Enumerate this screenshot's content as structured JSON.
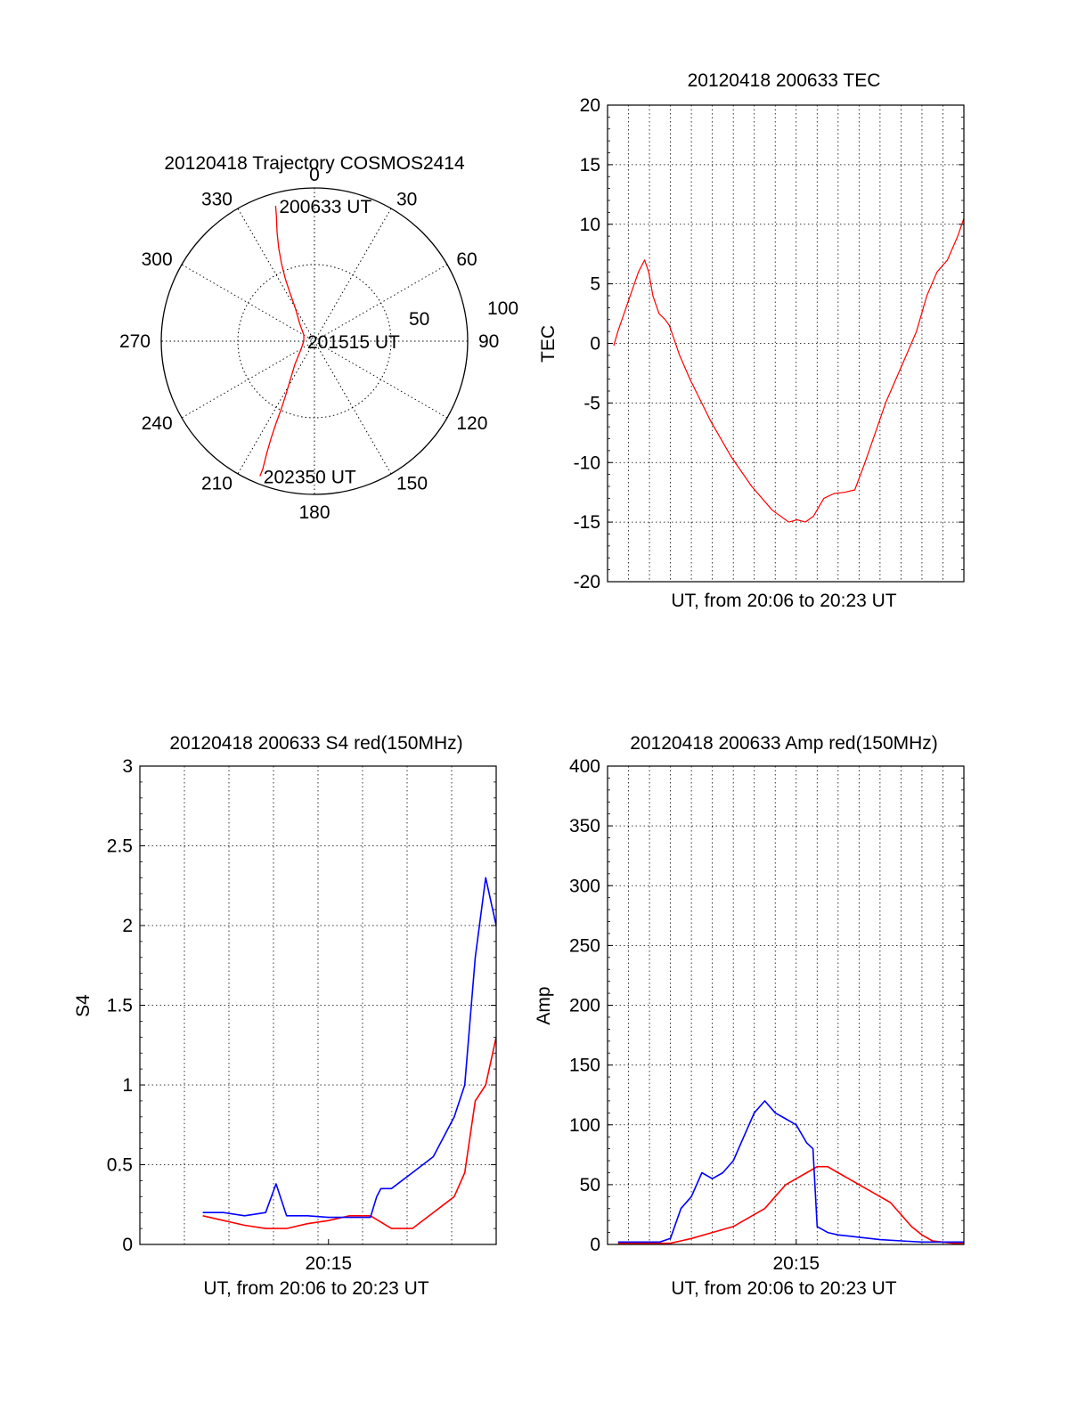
{
  "colors": {
    "red": "#ff0000",
    "blue": "#0000ff",
    "axis": "#000000",
    "grid": "#000000",
    "background": "#ffffff"
  },
  "chart_data": [
    {
      "type": "polar",
      "title": "20120418 Trajectory COSMOS2414",
      "angle_ticks": [
        "0",
        "30",
        "60",
        "90",
        "120",
        "150",
        "180",
        "210",
        "240",
        "270",
        "300",
        "330"
      ],
      "radial_ticks": [
        "50",
        "100"
      ],
      "rlim": [
        0,
        100
      ],
      "grid": true,
      "series": [
        {
          "color": "red",
          "points": [
            [
              344,
              92
            ],
            [
              343,
              85
            ],
            [
              341,
              75
            ],
            [
              339,
              65
            ],
            [
              337,
              55
            ],
            [
              335,
              45
            ],
            [
              333,
              35
            ],
            [
              330,
              25
            ],
            [
              320,
              15
            ],
            [
              300,
              8
            ],
            [
              270,
              7
            ],
            [
              240,
              10
            ],
            [
              220,
              20
            ],
            [
              212,
              30
            ],
            [
              208,
              40
            ],
            [
              206,
              50
            ],
            [
              205,
              60
            ],
            [
              204,
              70
            ],
            [
              203,
              80
            ],
            [
              202,
              90
            ],
            [
              202,
              95
            ]
          ]
        }
      ],
      "annotations": [
        {
          "text": "200633 UT",
          "angle": 344,
          "r": 92
        },
        {
          "text": "201515 UT",
          "angle": 270,
          "r": 7
        },
        {
          "text": "202350 UT",
          "angle": 202,
          "r": 95
        }
      ]
    },
    {
      "type": "line",
      "title": "20120418 200633 TEC",
      "xlabel": "UT, from 20:06 to 20:23 UT",
      "ylabel": "TEC",
      "xlim": [
        0,
        17.3
      ],
      "ylim": [
        -20,
        20
      ],
      "yticks": [
        "20",
        "15",
        "10",
        "5",
        "0",
        "-5",
        "-10",
        "-15",
        "-20"
      ],
      "xtick_labels": [],
      "grid": true,
      "series": [
        {
          "color": "red",
          "x": [
            0.3,
            0.5,
            0.8,
            1.0,
            1.3,
            1.5,
            1.8,
            2.0,
            2.2,
            2.5,
            2.8,
            3.0,
            3.2,
            3.5,
            4.0,
            5.0,
            6.0,
            7.0,
            8.0,
            8.8,
            9.2,
            9.6,
            10.0,
            10.5,
            11.0,
            11.5,
            12.0,
            12.5,
            13.0,
            13.5,
            14.0,
            14.5,
            15.0,
            15.5,
            16.0,
            16.5,
            17.0,
            17.3
          ],
          "y": [
            -0.2,
            1.0,
            2.5,
            3.5,
            5.0,
            6.0,
            7.0,
            6.0,
            4.0,
            2.5,
            2.0,
            1.5,
            0.5,
            -1.0,
            -3.0,
            -6.5,
            -9.5,
            -12.0,
            -14.0,
            -15.0,
            -14.8,
            -15.0,
            -14.5,
            -13.0,
            -12.6,
            -12.5,
            -12.3,
            -10.0,
            -7.5,
            -5.0,
            -3.0,
            -1.0,
            1.0,
            4.0,
            6.0,
            7.0,
            9.0,
            10.5
          ]
        }
      ]
    },
    {
      "type": "line",
      "title": "20120418 200633 S4 red(150MHz)",
      "xlabel": "UT, from 20:06 to 20:23 UT",
      "ylabel": "S4",
      "xlim": [
        0,
        17
      ],
      "ylim": [
        0,
        3
      ],
      "yticks": [
        "3",
        "2.5",
        "2",
        "1.5",
        "1",
        "0.5",
        "0"
      ],
      "xtick_labels": [
        {
          "label": "20:15",
          "x": 9
        }
      ],
      "grid": true,
      "series": [
        {
          "color": "red",
          "x": [
            3.0,
            4.0,
            5.0,
            6.0,
            7.0,
            8.0,
            9.0,
            10.0,
            11.0,
            12.0,
            13.0,
            13.5,
            14.0,
            14.5,
            15.0,
            15.5,
            16.0,
            16.5,
            17.0
          ],
          "y": [
            0.18,
            0.15,
            0.12,
            0.1,
            0.1,
            0.13,
            0.15,
            0.18,
            0.18,
            0.1,
            0.1,
            0.15,
            0.2,
            0.25,
            0.3,
            0.45,
            0.9,
            1.0,
            1.3
          ]
        },
        {
          "color": "blue",
          "x": [
            3.0,
            4.0,
            5.0,
            6.0,
            6.5,
            7.0,
            8.0,
            9.0,
            10.0,
            11.0,
            11.3,
            11.5,
            12.0,
            13.0,
            14.0,
            15.0,
            15.5,
            16.0,
            16.5,
            17.0
          ],
          "y": [
            0.2,
            0.2,
            0.18,
            0.2,
            0.38,
            0.18,
            0.18,
            0.17,
            0.17,
            0.17,
            0.3,
            0.35,
            0.35,
            0.45,
            0.55,
            0.8,
            1.0,
            1.8,
            2.3,
            2.0
          ]
        }
      ]
    },
    {
      "type": "line",
      "title": "20120418 200633 Amp red(150MHz)",
      "xlabel": "UT, from 20:06 to 20:23 UT",
      "ylabel": "Amp",
      "xlim": [
        0,
        17
      ],
      "ylim": [
        0,
        400
      ],
      "yticks": [
        "400",
        "350",
        "300",
        "250",
        "200",
        "150",
        "100",
        "50",
        "0"
      ],
      "xtick_labels": [
        {
          "label": "20:15",
          "x": 9
        }
      ],
      "grid": true,
      "series": [
        {
          "color": "red",
          "x": [
            0.5,
            3.0,
            3.5,
            4.0,
            5.0,
            6.0,
            6.5,
            7.0,
            7.5,
            8.0,
            8.5,
            9.0,
            9.5,
            10.0,
            10.5,
            11.0,
            11.5,
            12.0,
            12.5,
            13.0,
            13.5,
            14.0,
            14.5,
            15.0,
            15.5,
            16.0,
            16.5,
            17.0
          ],
          "y": [
            1,
            1,
            3,
            5,
            10,
            15,
            20,
            25,
            30,
            40,
            50,
            55,
            60,
            65,
            65,
            60,
            55,
            50,
            45,
            40,
            35,
            25,
            15,
            8,
            3,
            2,
            1,
            1
          ]
        },
        {
          "color": "blue",
          "x": [
            0.5,
            2.5,
            3.0,
            3.5,
            4.0,
            4.5,
            5.0,
            5.5,
            6.0,
            6.5,
            7.0,
            7.5,
            8.0,
            8.5,
            9.0,
            9.5,
            9.8,
            10.0,
            10.5,
            11.0,
            11.5,
            12.0,
            13.0,
            14.0,
            15.0,
            16.0,
            17.0
          ],
          "y": [
            2,
            2,
            5,
            30,
            40,
            60,
            55,
            60,
            70,
            90,
            110,
            120,
            110,
            105,
            100,
            85,
            80,
            15,
            10,
            8,
            7,
            6,
            4,
            3,
            2,
            2,
            2
          ]
        }
      ]
    }
  ]
}
